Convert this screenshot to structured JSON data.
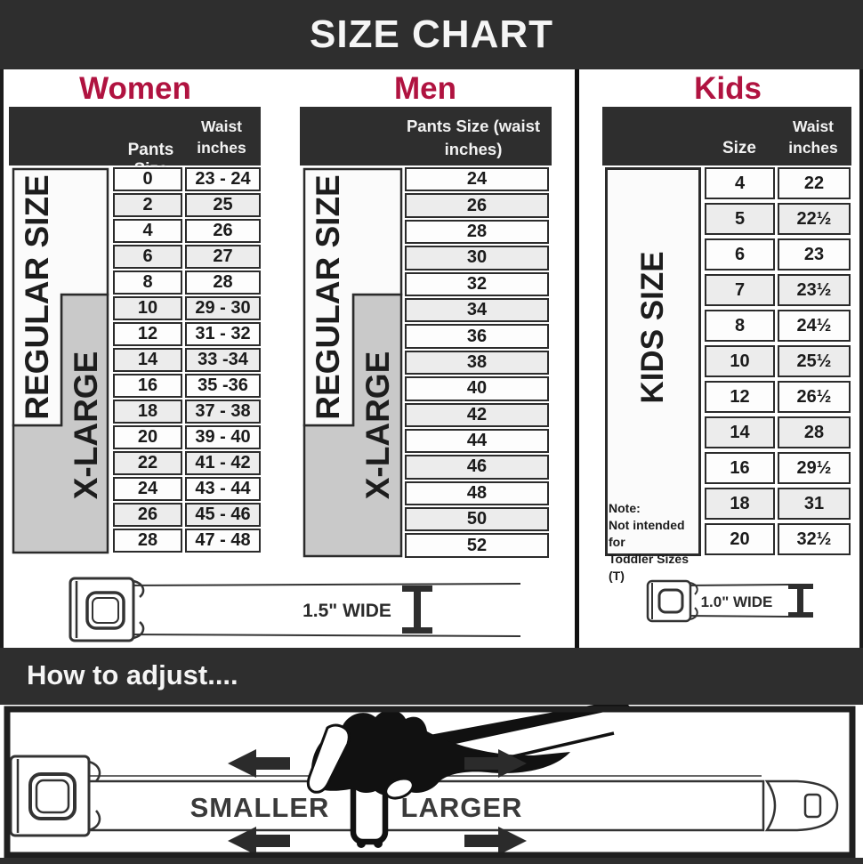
{
  "title": "SIZE CHART",
  "women": {
    "heading": "Women",
    "bracket_regular": "REGULAR SIZE",
    "bracket_xlarge": "X-LARGE",
    "col_pants": "Pants Size",
    "col_waist": "Waist inches",
    "rows": [
      [
        "0",
        "23 - 24"
      ],
      [
        "2",
        "25"
      ],
      [
        "4",
        "26"
      ],
      [
        "6",
        "27"
      ],
      [
        "8",
        "28"
      ],
      [
        "10",
        "29 - 30"
      ],
      [
        "12",
        "31 - 32"
      ],
      [
        "14",
        "33 -34"
      ],
      [
        "16",
        "35 -36"
      ],
      [
        "18",
        "37 - 38"
      ],
      [
        "20",
        "39 - 40"
      ],
      [
        "22",
        "41 - 42"
      ],
      [
        "24",
        "43 - 44"
      ],
      [
        "26",
        "45 - 46"
      ],
      [
        "28",
        "47 - 48"
      ]
    ]
  },
  "men": {
    "heading": "Men",
    "bracket_regular": "REGULAR SIZE",
    "bracket_xlarge": "X-LARGE",
    "col_pants": "Pants Size (waist inches)",
    "rows": [
      "24",
      "26",
      "28",
      "30",
      "32",
      "34",
      "36",
      "38",
      "40",
      "42",
      "44",
      "46",
      "48",
      "50",
      "52"
    ]
  },
  "kids": {
    "heading": "Kids",
    "bracket_label": "KIDS SIZE",
    "col_size": "Size",
    "col_waist": "Waist inches",
    "rows": [
      [
        "4",
        "22"
      ],
      [
        "5",
        "22½"
      ],
      [
        "6",
        "23"
      ],
      [
        "7",
        "23½"
      ],
      [
        "8",
        "24½"
      ],
      [
        "10",
        "25½"
      ],
      [
        "12",
        "26½"
      ],
      [
        "14",
        "28"
      ],
      [
        "16",
        "29½"
      ],
      [
        "18",
        "31"
      ],
      [
        "20",
        "32½"
      ]
    ],
    "note_title": "Note:",
    "note_line1": "Not intended for",
    "note_line2": "Toddler Sizes (T)"
  },
  "belts": {
    "adult_width": "1.5\" WIDE",
    "kids_width": "1.0\" WIDE"
  },
  "adjust": {
    "heading": "How to adjust....",
    "smaller": "SMALLER",
    "larger": "LARGER"
  },
  "colors": {
    "bar": "#2e2e2e",
    "accent_red": "#b01340",
    "bracket_gray": "#c9c9c9",
    "row_alt": "#ececec"
  }
}
